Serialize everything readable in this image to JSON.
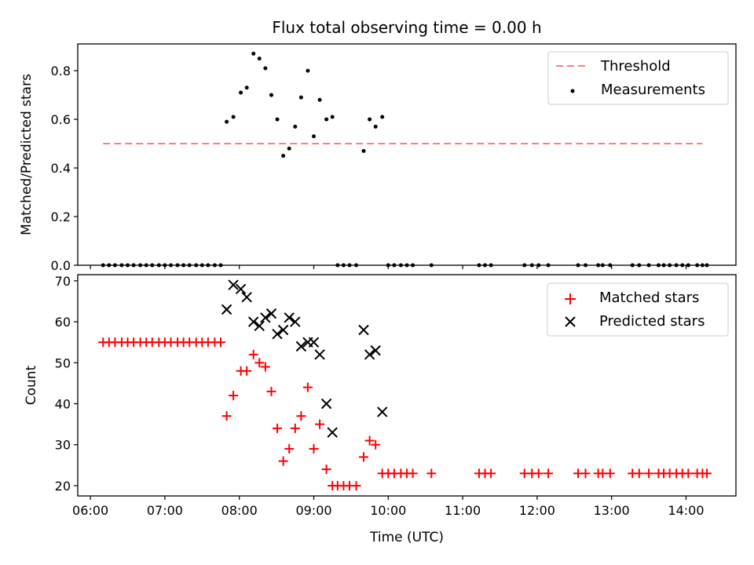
{
  "chart_data": [
    {
      "type": "scatter",
      "panel": "top",
      "title": "Flux total observing time = 0.00 h",
      "xlabel": "",
      "ylabel": "Matched/Predicted stars",
      "xlim": [
        5.83,
        14.67
      ],
      "ylim": [
        0.0,
        0.91
      ],
      "yticks": [
        0.0,
        0.2,
        0.4,
        0.6,
        0.8
      ],
      "ytick_labels": [
        "0.0",
        "0.2",
        "0.4",
        "0.6",
        "0.8"
      ],
      "legend": {
        "position": "top-right",
        "entries": [
          "Threshold",
          "Measurements"
        ]
      },
      "threshold": {
        "name": "Threshold",
        "y": 0.5,
        "x": [
          6.17,
          14.22
        ],
        "color": "#ff7f7f"
      },
      "series": [
        {
          "name": "Measurements",
          "color": "#000000",
          "x": [
            6.17,
            6.25,
            6.33,
            6.42,
            6.5,
            6.58,
            6.67,
            6.75,
            6.83,
            6.92,
            7.0,
            7.08,
            7.17,
            7.25,
            7.33,
            7.42,
            7.5,
            7.58,
            7.67,
            7.75,
            7.83,
            7.92,
            8.02,
            8.1,
            8.19,
            8.27,
            8.35,
            8.43,
            8.51,
            8.59,
            8.67,
            8.75,
            8.83,
            8.92,
            9.0,
            9.08,
            9.17,
            9.25,
            9.32,
            9.4,
            9.48,
            9.57,
            9.67,
            9.75,
            9.83,
            9.92,
            10.0,
            10.08,
            10.17,
            10.25,
            10.33,
            10.58,
            11.22,
            11.3,
            11.38,
            11.83,
            11.93,
            12.02,
            12.15,
            12.55,
            12.65,
            12.82,
            12.88,
            12.98,
            13.28,
            13.37,
            13.5,
            13.63,
            13.7,
            13.78,
            13.87,
            13.95,
            14.03,
            14.15,
            14.22,
            14.28
          ],
          "y": [
            0,
            0,
            0,
            0,
            0,
            0,
            0,
            0,
            0,
            0,
            0,
            0,
            0,
            0,
            0,
            0,
            0,
            0,
            0,
            0,
            0.59,
            0.61,
            0.71,
            0.73,
            0.87,
            0.85,
            0.81,
            0.7,
            0.6,
            0.45,
            0.48,
            0.57,
            0.69,
            0.8,
            0.53,
            0.68,
            0.6,
            0.61,
            0,
            0,
            0,
            0,
            0.47,
            0.6,
            0.57,
            0.61,
            0,
            0,
            0,
            0,
            0,
            0,
            0,
            0,
            0,
            0,
            0,
            0,
            0,
            0,
            0,
            0,
            0,
            0,
            0,
            0,
            0,
            0,
            0,
            0,
            0,
            0,
            0,
            0,
            0,
            0
          ]
        }
      ]
    },
    {
      "type": "scatter",
      "panel": "bottom",
      "title": "",
      "xlabel": "Time (UTC)",
      "ylabel": "Count",
      "xlim": [
        5.83,
        14.67
      ],
      "ylim": [
        17.5,
        71.5
      ],
      "yticks": [
        20,
        30,
        40,
        50,
        60,
        70
      ],
      "ytick_labels": [
        "20",
        "30",
        "40",
        "50",
        "60",
        "70"
      ],
      "xticks": [
        6,
        7,
        8,
        9,
        10,
        11,
        12,
        13,
        14
      ],
      "xtick_labels": [
        "06:00",
        "07:00",
        "08:00",
        "09:00",
        "10:00",
        "11:00",
        "12:00",
        "13:00",
        "14:00"
      ],
      "legend": {
        "position": "top-right",
        "entries": [
          "Matched stars",
          "Predicted stars"
        ]
      },
      "series": [
        {
          "name": "Matched stars",
          "marker": "plus",
          "color": "#ff0000",
          "x": [
            6.17,
            6.25,
            6.33,
            6.42,
            6.5,
            6.58,
            6.67,
            6.75,
            6.83,
            6.92,
            7.0,
            7.08,
            7.17,
            7.25,
            7.33,
            7.42,
            7.5,
            7.58,
            7.67,
            7.75,
            7.83,
            7.92,
            8.02,
            8.1,
            8.19,
            8.27,
            8.35,
            8.43,
            8.51,
            8.59,
            8.67,
            8.75,
            8.83,
            8.92,
            9.0,
            9.08,
            9.17,
            9.25,
            9.32,
            9.4,
            9.48,
            9.57,
            9.67,
            9.75,
            9.83,
            9.92,
            10.0,
            10.08,
            10.17,
            10.25,
            10.33,
            10.58,
            11.22,
            11.3,
            11.38,
            11.83,
            11.93,
            12.02,
            12.15,
            12.55,
            12.65,
            12.82,
            12.88,
            12.98,
            13.28,
            13.37,
            13.5,
            13.63,
            13.7,
            13.78,
            13.87,
            13.95,
            14.03,
            14.15,
            14.22,
            14.28
          ],
          "y": [
            55,
            55,
            55,
            55,
            55,
            55,
            55,
            55,
            55,
            55,
            55,
            55,
            55,
            55,
            55,
            55,
            55,
            55,
            55,
            55,
            37,
            42,
            48,
            48,
            52,
            50,
            49,
            43,
            34,
            26,
            29,
            34,
            37,
            44,
            29,
            35,
            24,
            20,
            20,
            20,
            20,
            20,
            27,
            31,
            30,
            23,
            23,
            23,
            23,
            23,
            23,
            23,
            23,
            23,
            23,
            23,
            23,
            23,
            23,
            23,
            23,
            23,
            23,
            23,
            23,
            23,
            23,
            23,
            23,
            23,
            23,
            23,
            23,
            23,
            23,
            23
          ]
        },
        {
          "name": "Predicted stars",
          "marker": "x",
          "color": "#000000",
          "x": [
            7.83,
            7.92,
            8.02,
            8.1,
            8.19,
            8.27,
            8.35,
            8.43,
            8.51,
            8.59,
            8.67,
            8.75,
            8.83,
            8.92,
            9.0,
            9.08,
            9.17,
            9.25,
            9.67,
            9.75,
            9.83,
            9.92
          ],
          "y": [
            63,
            69,
            68,
            66,
            60,
            59,
            61,
            62,
            57,
            58,
            61,
            60,
            54,
            55,
            55,
            52,
            40,
            33,
            58,
            52,
            53,
            38
          ]
        }
      ]
    }
  ]
}
